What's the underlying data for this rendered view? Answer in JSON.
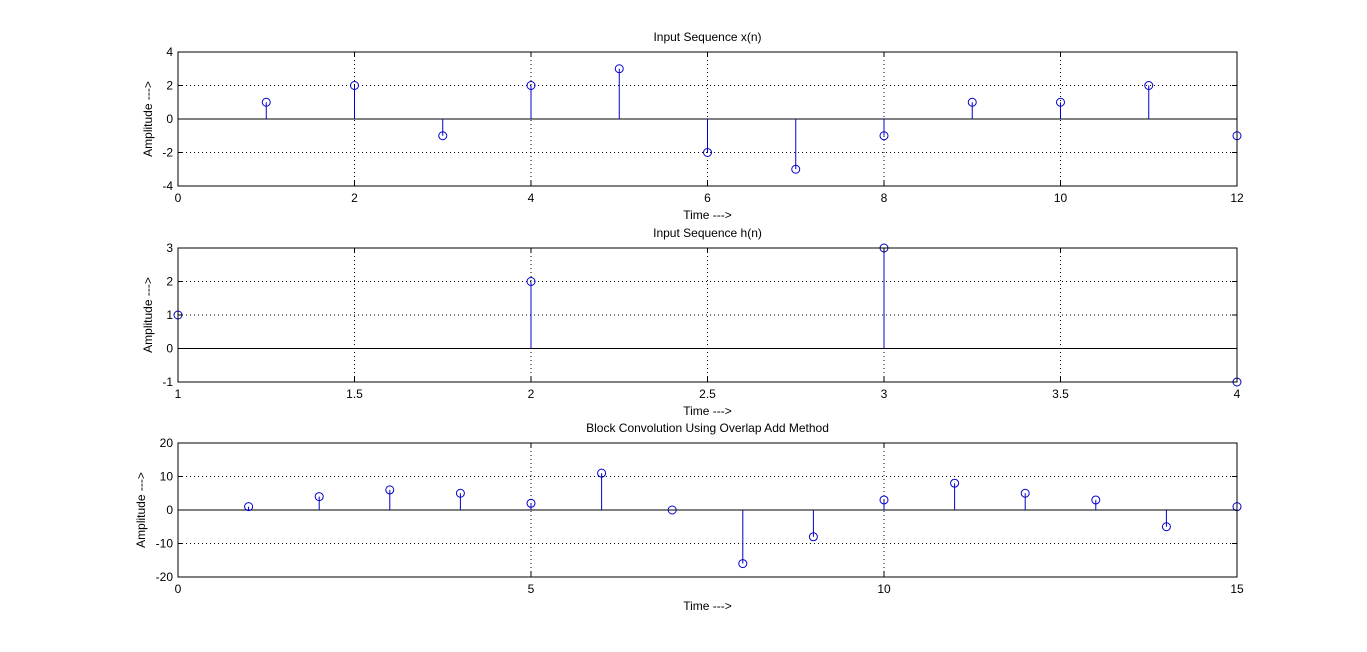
{
  "chart_data": [
    {
      "type": "stem",
      "title": "Input Sequence x(n)",
      "xlabel": "Time --->",
      "ylabel": "Amplitude --->",
      "xlim": [
        0,
        12
      ],
      "ylim": [
        -4,
        4
      ],
      "xticks": [
        "0",
        "2",
        "4",
        "6",
        "8",
        "10",
        "12"
      ],
      "yticks": [
        "-4",
        "-2",
        "0",
        "2",
        "4"
      ],
      "grid": true,
      "series": [
        {
          "x": [
            1,
            2,
            3,
            4,
            5,
            6,
            7,
            8,
            9,
            10,
            11,
            12
          ],
          "values": [
            1,
            2,
            -1,
            2,
            3,
            -2,
            -3,
            -1,
            1,
            1,
            2,
            -1
          ]
        }
      ]
    },
    {
      "type": "stem",
      "title": "Input Sequence h(n)",
      "xlabel": "Time --->",
      "ylabel": "Amplitude --->",
      "xlim": [
        1,
        4
      ],
      "ylim": [
        -1,
        3
      ],
      "xticks": [
        "1",
        "1.5",
        "2",
        "2.5",
        "3",
        "3.5",
        "4"
      ],
      "yticks": [
        "-1",
        "0",
        "1",
        "2",
        "3"
      ],
      "grid": true,
      "series": [
        {
          "x": [
            1,
            2,
            3,
            4
          ],
          "values": [
            1,
            2,
            3,
            -1
          ]
        }
      ]
    },
    {
      "type": "stem",
      "title": "Block Convolution Using Overlap Add Method",
      "xlabel": "Time --->",
      "ylabel": "Amplitude --->",
      "xlim": [
        0,
        15
      ],
      "ylim": [
        -20,
        20
      ],
      "xticks": [
        "0",
        "5",
        "10",
        "15"
      ],
      "yticks": [
        "-20",
        "-10",
        "0",
        "10",
        "20"
      ],
      "grid": true,
      "series": [
        {
          "x": [
            1,
            2,
            3,
            4,
            5,
            6,
            7,
            8,
            9,
            10,
            11,
            12,
            13,
            14,
            15
          ],
          "values": [
            1,
            4,
            6,
            5,
            2,
            11,
            0,
            -16,
            -8,
            3,
            8,
            5,
            3,
            -5,
            1
          ]
        }
      ]
    }
  ],
  "colors": {
    "stem": "#0000cc",
    "axis": "#000000",
    "grid": "#000000",
    "background": "#ffffff"
  }
}
